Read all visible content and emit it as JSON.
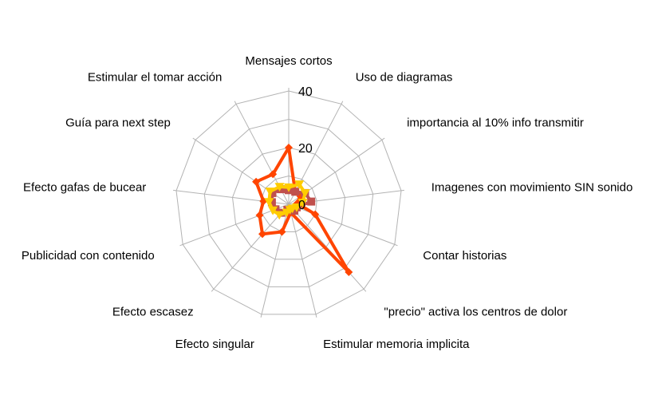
{
  "chart_data": {
    "type": "radar",
    "categories": [
      "Mensajes cortos",
      "Uso de diagramas",
      "importancia al 10% info transmitir",
      "Imagenes con movimiento SIN sonido",
      "Contar historias",
      "\"precio\" activa los centros de dolor",
      "Estimular memoria implicita",
      "Efecto singular",
      "Efecto escasez",
      "Publicidad con contenido",
      "Efecto gafas de bucear",
      "Guía para next step",
      "Estimular el tomar acción"
    ],
    "series": [
      {
        "name": "",
        "color": "#ff4500",
        "marker": "diamond",
        "values": [
          20,
          5,
          5,
          3,
          10,
          32,
          3,
          10,
          14,
          11,
          9,
          14,
          12
        ]
      },
      {
        "name": "",
        "color": "#c0504d",
        "marker": "square",
        "values": [
          5,
          5,
          7,
          8,
          3,
          3,
          2,
          2,
          4,
          5,
          6,
          7,
          6
        ]
      },
      {
        "name": "",
        "color": "#ffcc00",
        "marker": "triangle",
        "values": [
          6,
          8,
          7,
          5,
          3,
          2,
          2,
          3,
          5,
          6,
          7,
          8,
          7
        ]
      }
    ],
    "ticks": [
      "0",
      "20",
      "40"
    ],
    "rlim": [
      0,
      40
    ],
    "grid": true,
    "legend": "none"
  }
}
